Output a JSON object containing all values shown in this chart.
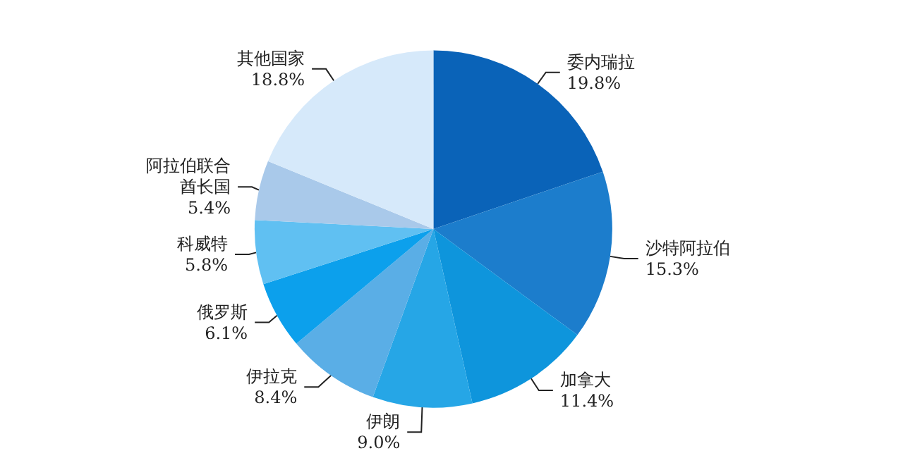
{
  "chart_data": {
    "type": "pie",
    "categories": [
      "委内瑞拉",
      "沙特阿拉伯",
      "加拿大",
      "伊朗",
      "伊拉克",
      "俄罗斯",
      "科威特",
      "阿拉伯联合酋长国",
      "其他国家"
    ],
    "values": [
      19.8,
      15.3,
      11.4,
      9.0,
      8.4,
      6.1,
      5.8,
      5.4,
      18.8
    ],
    "value_labels": [
      "19.8%",
      "15.3%",
      "11.4%",
      "9.0%",
      "8.4%",
      "6.1%",
      "5.8%",
      "5.4%",
      "18.8%"
    ],
    "colors": [
      "#0a63b8",
      "#1c7dcc",
      "#0e95dc",
      "#26a6e6",
      "#5aaee6",
      "#0ca0ec",
      "#60c0f2",
      "#a9c9ea",
      "#d6e9fa"
    ],
    "legend": false
  }
}
